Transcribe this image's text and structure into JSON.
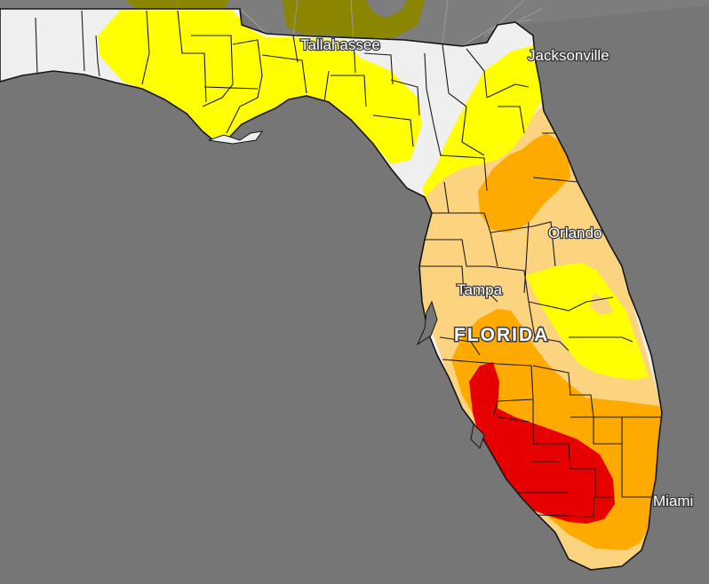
{
  "map": {
    "state_label": "FLORIDA",
    "cities": {
      "tallahassee": "Tallahassee",
      "jacksonville": "Jacksonville",
      "orlando": "Orlando",
      "tampa": "Tampa",
      "miami": "Miami"
    },
    "colors": {
      "water": "#767676",
      "no_drought": "#efefef",
      "d0_abnormally_dry": "#ffff00",
      "d1_moderate": "#fcd37f",
      "d2_severe": "#ffaa00",
      "d3_extreme": "#e60000",
      "neighbor_d4": "#8a8600"
    }
  }
}
